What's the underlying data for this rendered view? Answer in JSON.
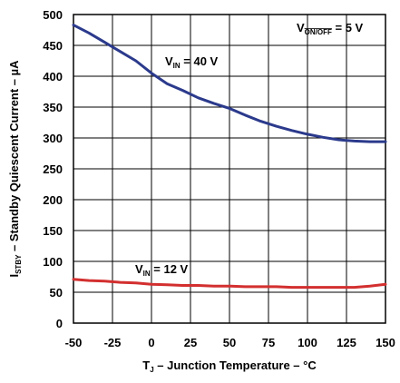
{
  "chart_data": {
    "type": "line",
    "xlabel": {
      "main": "T",
      "sub": "J",
      "rest": " – Junction Temperature – °C"
    },
    "ylabel": {
      "main": "I",
      "sub": "STBY",
      "rest": " – Standby Quiescent Current – µA"
    },
    "xlim": [
      -50,
      150
    ],
    "ylim": [
      0,
      500
    ],
    "x_ticks": [
      -50,
      -25,
      0,
      25,
      50,
      75,
      100,
      125,
      150
    ],
    "y_ticks": [
      0,
      50,
      100,
      150,
      200,
      250,
      300,
      350,
      400,
      450,
      500
    ],
    "grid": true,
    "annotations": [
      {
        "id": "von",
        "main": "V",
        "sub": "ON/OFF",
        "rest": " = 5 V",
        "overline_sub": true
      },
      {
        "id": "vin40",
        "main": "V",
        "sub": "IN",
        "rest": " = 40 V",
        "overline_sub": false
      },
      {
        "id": "vin12",
        "main": "V",
        "sub": "IN",
        "rest": " = 12 V",
        "overline_sub": false
      }
    ],
    "series": [
      {
        "color": "#2b3a8c",
        "x": [
          -50,
          -40,
          -30,
          -20,
          -10,
          0,
          10,
          20,
          30,
          40,
          50,
          60,
          70,
          80,
          90,
          100,
          110,
          120,
          130,
          140,
          150
        ],
        "y": [
          483,
          470,
          455,
          440,
          425,
          405,
          388,
          377,
          365,
          356,
          348,
          337,
          327,
          319,
          312,
          306,
          301,
          297,
          295,
          294,
          294
        ]
      },
      {
        "color": "#d32f2f",
        "x": [
          -50,
          -40,
          -30,
          -20,
          -10,
          0,
          10,
          20,
          30,
          40,
          50,
          60,
          70,
          80,
          90,
          100,
          110,
          120,
          130,
          140,
          150
        ],
        "y": [
          71,
          69,
          68,
          66,
          65,
          63,
          62,
          61,
          61,
          60,
          60,
          59,
          59,
          59,
          58,
          58,
          58,
          58,
          58,
          60,
          63
        ]
      }
    ]
  }
}
